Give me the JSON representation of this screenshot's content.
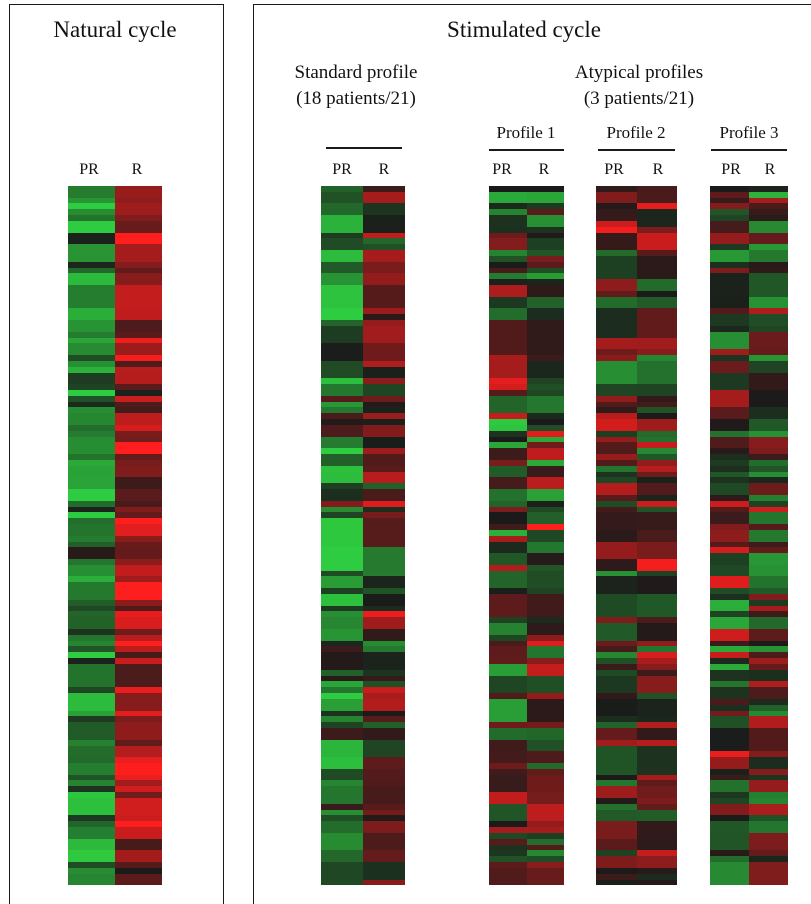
{
  "panels": {
    "natural_title": "Natural cycle",
    "stimulated_title": "Stimulated cycle"
  },
  "groups": {
    "standard": {
      "line1": "Standard profile",
      "line2": "(18 patients/21)"
    },
    "atypical": {
      "line1": "Atypical profiles",
      "line2": "(3 patients/21)"
    }
  },
  "colors": {
    "low_green": "#2ecc40",
    "mid_black": "#1a1a1a",
    "high_red": "#ff1a1a"
  },
  "chart_data": {
    "type": "heatmap",
    "value_scale": "green (-1) to black (0) to red (+1)",
    "rows_per_map": 120,
    "heatmaps": [
      {
        "name": "Natural cycle",
        "columns": [
          "PR",
          "R"
        ],
        "seed": 11,
        "pr_bias": -0.55,
        "r_bias": 0.55,
        "noise": 0.35
      },
      {
        "name": "Standard profile",
        "columns": [
          "PR",
          "R"
        ],
        "seed": 23,
        "pr_bias": -0.4,
        "r_bias": 0.15,
        "noise": 0.55
      },
      {
        "name": "Profile 1",
        "columns": [
          "PR",
          "R"
        ],
        "seed": 37,
        "pr_bias": 0.0,
        "r_bias": 0.0,
        "noise": 0.7
      },
      {
        "name": "Profile 2",
        "columns": [
          "PR",
          "R"
        ],
        "seed": 51,
        "pr_bias": 0.1,
        "r_bias": 0.2,
        "noise": 0.65
      },
      {
        "name": "Profile 3",
        "columns": [
          "PR",
          "R"
        ],
        "seed": 73,
        "pr_bias": 0.0,
        "r_bias": -0.05,
        "noise": 0.65
      }
    ]
  }
}
